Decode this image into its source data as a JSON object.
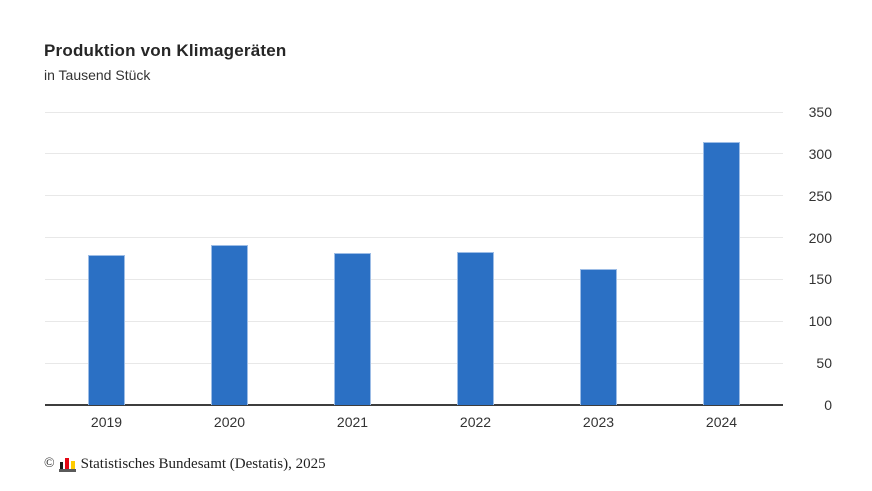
{
  "title": "Produktion von Klimageräten",
  "subtitle": "in Tausend Stück",
  "footer": {
    "copyright_symbol": "©",
    "source": "Statistisches Bundesamt (Destatis), 2025"
  },
  "colors": {
    "bar_fill": "#2b70c4",
    "bar_border": "#9dbde6",
    "grid": "#e8e8e8",
    "axis": "#3d3d3d",
    "text": "#333333",
    "logo_black": "#1d1d1b",
    "logo_red": "#e30613",
    "logo_yellow": "#ffcc00"
  },
  "chart_data": {
    "type": "bar",
    "title": "Produktion von Klimageräten",
    "subtitle": "in Tausend Stück",
    "categories": [
      "2019",
      "2020",
      "2021",
      "2022",
      "2023",
      "2024"
    ],
    "values": [
      179,
      191,
      182,
      183,
      163,
      314
    ],
    "xlabel": "",
    "ylabel": "in Tausend Stück",
    "ylim": [
      0,
      350
    ],
    "yticks": [
      0,
      50,
      100,
      150,
      200,
      250,
      300,
      350
    ],
    "grid": true,
    "legend": false,
    "y_axis_position": "right",
    "source": "Statistisches Bundesamt (Destatis), 2025"
  }
}
